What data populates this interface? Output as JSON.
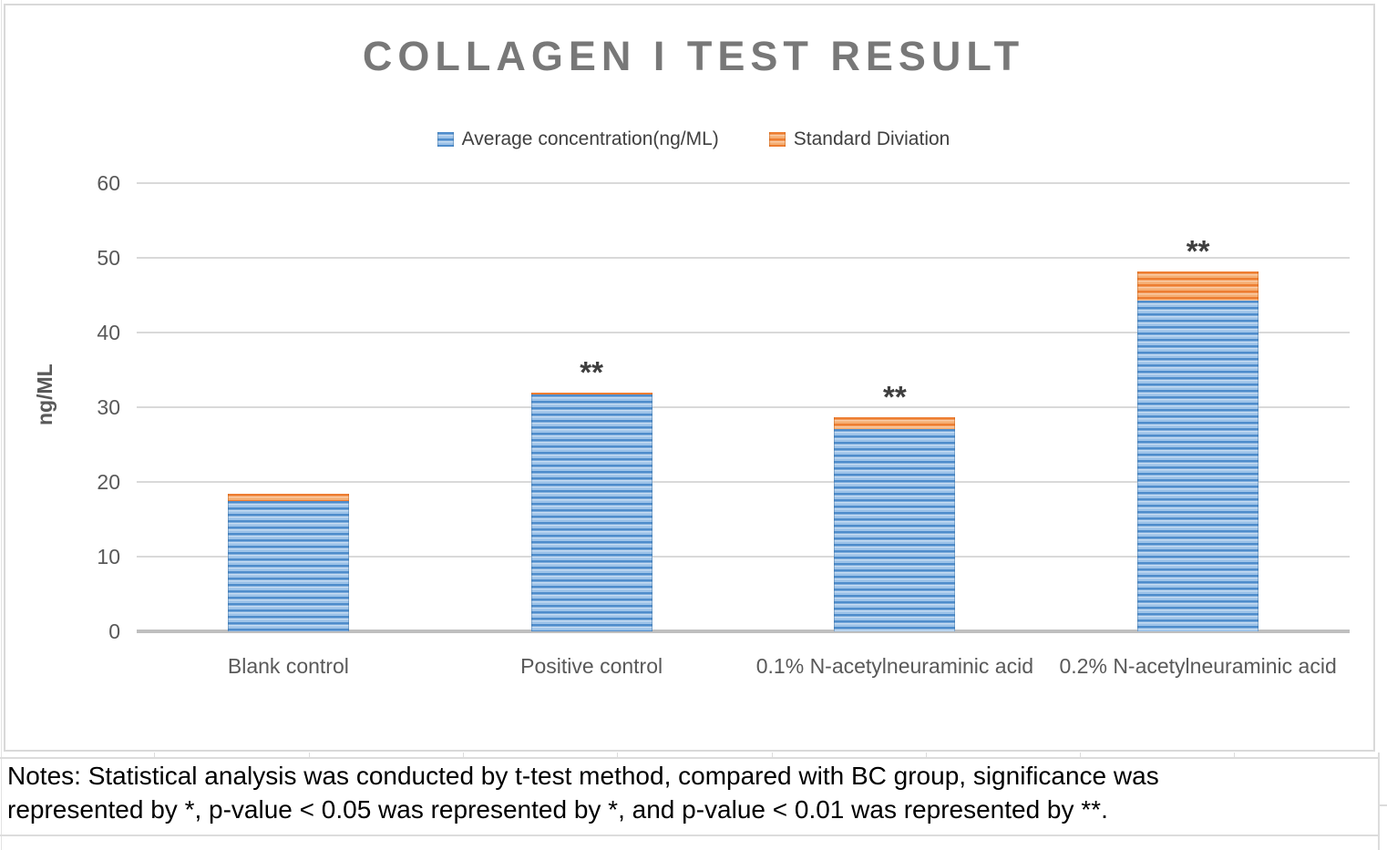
{
  "chart_data": {
    "type": "bar",
    "stacked": true,
    "title": "COLLAGEN I TEST RESULT",
    "ylabel": "ng/ML",
    "ylim": [
      0,
      60
    ],
    "yticks": [
      0,
      10,
      20,
      30,
      40,
      50,
      60
    ],
    "grid": true,
    "legend_position": "top",
    "categories": [
      "Blank control",
      "Positive control",
      "0.1% N-acetylneuraminic acid",
      "0.2% N-acetylneuraminic acid"
    ],
    "series": [
      {
        "name": "Average concentration(ng/ML)",
        "color": "#5B9BD5",
        "values": [
          17.5,
          31.7,
          27.1,
          44.3
        ]
      },
      {
        "name": "Standard Diviation",
        "color": "#ED7D31",
        "values": [
          0.9,
          0.3,
          1.6,
          3.9
        ]
      }
    ],
    "annotations": [
      "",
      "**",
      "**",
      "**"
    ]
  },
  "notes": {
    "line1": "Notes: Statistical analysis was conducted by t-test method, compared with BC group, significance was",
    "line2": "represented by *, p-value < 0.05 was represented by *, and p-value < 0.01 was represented by **."
  },
  "colors": {
    "bar_blue": "#5B9BD5",
    "bar_orange": "#ED7D31",
    "gridline": "#D9D9D9",
    "axis_line": "#BFBFBF",
    "title_text": "#787878",
    "axis_text": "#595959",
    "notes_text": "#000000"
  }
}
